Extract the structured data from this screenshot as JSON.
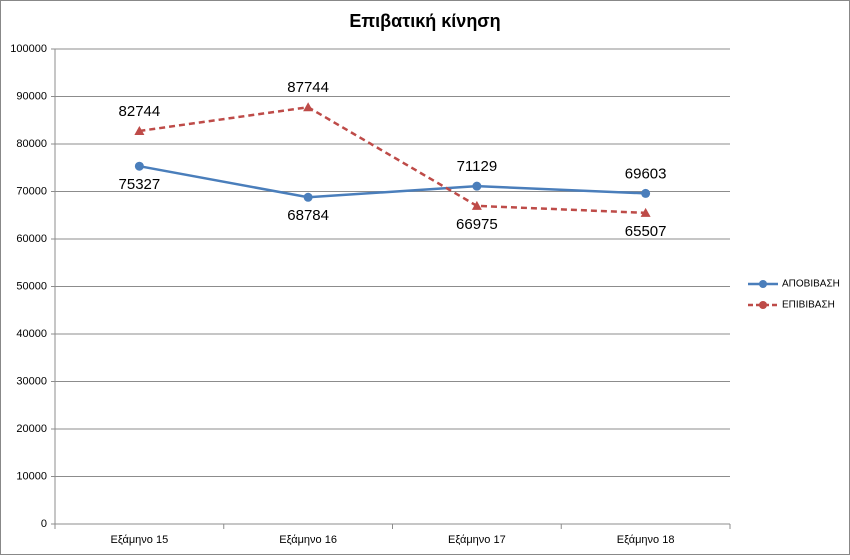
{
  "chart_data": {
    "type": "line",
    "title": "Επιβατική κίνηση",
    "categories": [
      "Εξάμηνο 15",
      "Εξάμηνο 16",
      "Εξάμηνο 17",
      "Εξάμηνο 18"
    ],
    "series": [
      {
        "name": "ΑΠΟΒΙΒΑΣΗ",
        "color": "#4a7ebb",
        "dash": "solid",
        "marker": "circle",
        "values": [
          75327,
          68784,
          71129,
          69603
        ]
      },
      {
        "name": "ΕΠΙΒΙΒΑΣΗ",
        "color": "#be4b48",
        "dash": "dashed",
        "marker": "triangle",
        "values": [
          82744,
          87744,
          66975,
          65507
        ]
      }
    ],
    "ylim": [
      0,
      100000
    ],
    "yticks": [
      0,
      10000,
      20000,
      30000,
      40000,
      50000,
      60000,
      70000,
      80000,
      90000,
      100000
    ],
    "grid": true,
    "legend": "right"
  }
}
